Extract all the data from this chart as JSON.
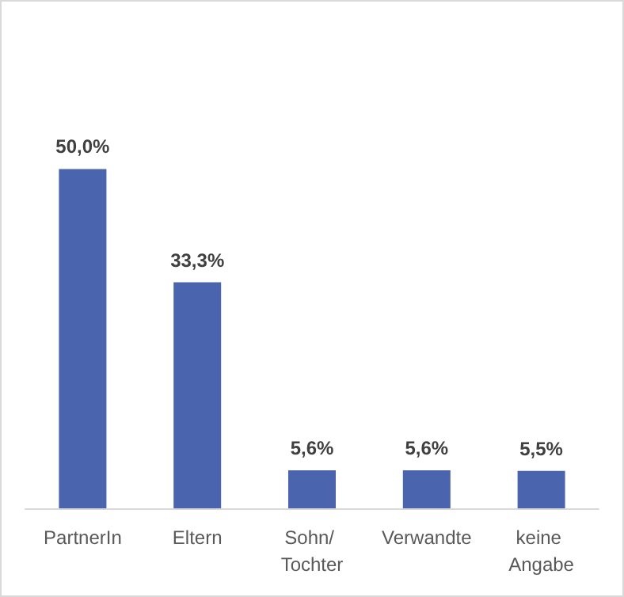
{
  "chart_data": {
    "type": "bar",
    "categories": [
      "PartnerIn",
      "Eltern",
      "Sohn/ Tochter",
      "Verwandte",
      "keine Angabe"
    ],
    "values": [
      50.0,
      33.3,
      5.6,
      5.6,
      5.5
    ],
    "value_labels": [
      "50,0%",
      "33,3%",
      "5,6%",
      "5,6%",
      "5,5%"
    ],
    "color": "#4a65ae"
  }
}
